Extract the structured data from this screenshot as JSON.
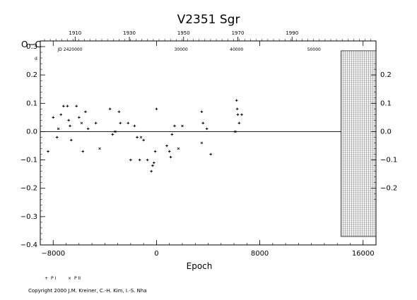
{
  "chart_data": {
    "type": "scatter",
    "title": "V2351  Sgr",
    "ylabel": "O−C",
    "ylabel_superscript": "d",
    "xlabel": "Epoch",
    "xlim": [
      -9000,
      17000
    ],
    "ylim": [
      -0.4,
      0.32
    ],
    "x_ticks": [
      "−8000",
      "0",
      "8000",
      "16000"
    ],
    "x_tick_values": [
      -8000,
      0,
      8000,
      16000
    ],
    "y_ticks": [
      "−0.4",
      "−0.3",
      "−0.2",
      "−0.1",
      "0.0",
      "0.1",
      "0.2",
      "0.3"
    ],
    "y_tick_values": [
      -0.4,
      -0.3,
      -0.2,
      -0.1,
      0.0,
      0.1,
      0.2,
      0.3
    ],
    "top_year_ticks": [
      "1910",
      "1930",
      "1950",
      "1970",
      "1990"
    ],
    "top_jd_ticks": [
      "JD  2420000",
      "30000",
      "40000",
      "50000"
    ],
    "right_ticks": [
      "−0.2",
      "−0.1",
      "0.0",
      "0.1",
      "0.2"
    ],
    "right_tick_values": [
      -0.2,
      -0.1,
      0.0,
      0.1,
      0.2
    ],
    "hatch_region_x": [
      14300,
      17000
    ],
    "zero_line": true,
    "series": [
      {
        "name": "P I",
        "marker": "plus",
        "points": [
          [
            -8400,
            -0.07
          ],
          [
            -8000,
            0.05
          ],
          [
            -7700,
            -0.02
          ],
          [
            -7400,
            0.06
          ],
          [
            -7200,
            0.09
          ],
          [
            -6900,
            0.09
          ],
          [
            -6800,
            0.04
          ],
          [
            -6700,
            0.02
          ],
          [
            -6600,
            -0.03
          ],
          [
            -6200,
            0.09
          ],
          [
            -6000,
            0.05
          ],
          [
            -5700,
            -0.07
          ],
          [
            -5500,
            0.07
          ],
          [
            -5300,
            0.01
          ],
          [
            -4700,
            0.03
          ],
          [
            -3600,
            0.08
          ],
          [
            -3400,
            -0.01
          ],
          [
            -2900,
            0.07
          ],
          [
            -2800,
            0.03
          ],
          [
            -2200,
            0.03
          ],
          [
            -2000,
            -0.1
          ],
          [
            -1700,
            0.02
          ],
          [
            -1500,
            -0.02
          ],
          [
            -1300,
            -0.1
          ],
          [
            -1000,
            -0.03
          ],
          [
            -700,
            -0.1
          ],
          [
            -400,
            -0.14
          ],
          [
            -300,
            -0.12
          ],
          [
            -200,
            -0.11
          ],
          [
            -100,
            -0.07
          ],
          [
            0,
            0.08
          ],
          [
            800,
            -0.05
          ],
          [
            1000,
            -0.07
          ],
          [
            1100,
            -0.09
          ],
          [
            1200,
            -0.01
          ],
          [
            1400,
            0.02
          ],
          [
            3500,
            0.07
          ],
          [
            3600,
            0.03
          ],
          [
            3900,
            0.01
          ],
          [
            4200,
            -0.08
          ],
          [
            6200,
            0.11
          ],
          [
            6250,
            0.08
          ],
          [
            6300,
            0.06
          ],
          [
            6400,
            0.03
          ],
          [
            6600,
            0.06
          ]
        ]
      },
      {
        "name": "P II",
        "marker": "x",
        "points": [
          [
            -7600,
            0.01
          ],
          [
            -5800,
            0.03
          ],
          [
            -4400,
            -0.06
          ],
          [
            -3200,
            0.0
          ],
          [
            -1200,
            -0.02
          ],
          [
            1700,
            -0.06
          ],
          [
            2000,
            0.02
          ],
          [
            3500,
            -0.04
          ],
          [
            6100,
            0.0
          ]
        ]
      }
    ],
    "legend": [
      {
        "marker": "+",
        "label": "P I"
      },
      {
        "marker": "×",
        "label": "P II"
      }
    ],
    "legend_position": "bottom-left"
  },
  "copyright": "Copyright 2000 J.M. Kreiner, C.-H. Kim, I.-S. Nha"
}
